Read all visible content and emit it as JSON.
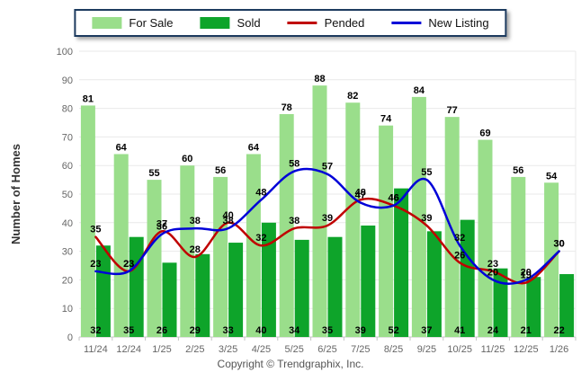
{
  "chart_data": {
    "type": "bar",
    "title": "",
    "xlabel": "",
    "ylabel": "Number of Homes",
    "ylim": [
      0,
      100
    ],
    "ytick_step": 10,
    "grid": true,
    "legend_position": "top",
    "categories": [
      "11/24",
      "12/24",
      "1/25",
      "2/25",
      "3/25",
      "4/25",
      "5/25",
      "6/25",
      "7/25",
      "8/25",
      "9/25",
      "10/25",
      "11/25",
      "12/25",
      "1/26"
    ],
    "series": [
      {
        "name": "For Sale",
        "type": "bar",
        "color": "#9ADE8B",
        "values": [
          81,
          64,
          55,
          60,
          56,
          64,
          78,
          88,
          82,
          74,
          84,
          77,
          69,
          56,
          54
        ]
      },
      {
        "name": "Sold",
        "type": "bar",
        "color": "#0EA42A",
        "values": [
          32,
          35,
          26,
          29,
          33,
          40,
          34,
          35,
          39,
          52,
          37,
          41,
          24,
          21,
          22
        ]
      },
      {
        "name": "Pended",
        "type": "line",
        "color": "#C00000",
        "values": [
          35,
          23,
          37,
          28,
          40,
          32,
          38,
          39,
          48,
          46,
          39,
          26,
          23,
          19,
          30
        ]
      },
      {
        "name": "New Listing",
        "type": "line",
        "color": "#0000D8",
        "values": [
          23,
          23,
          36,
          38,
          38,
          48,
          58,
          57,
          47,
          46,
          55,
          32,
          20,
          20,
          30
        ]
      }
    ]
  },
  "footer": {
    "copyright": "Copyright © Trendgraphix, Inc."
  }
}
